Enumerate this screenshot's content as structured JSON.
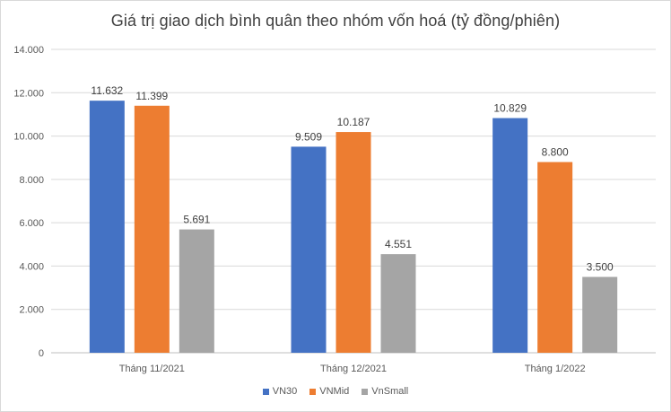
{
  "chart_data": {
    "type": "bar",
    "title": "Giá trị giao dịch bình quân theo nhóm vốn hoá (tỷ đồng/phiên)",
    "xlabel": "",
    "ylabel": "",
    "categories": [
      "Tháng 11/2021",
      "Tháng 12/2021",
      "Tháng 1/2022"
    ],
    "series": [
      {
        "name": "VN30",
        "color": "#4472c4",
        "values": [
          11632,
          9509,
          10829
        ],
        "labels": [
          "11.632",
          "9.509",
          "10.829"
        ]
      },
      {
        "name": "VNMid",
        "color": "#ed7d31",
        "values": [
          11399,
          10187,
          8800
        ],
        "labels": [
          "11.399",
          "10.187",
          "8.800"
        ]
      },
      {
        "name": "VnSmall",
        "color": "#a5a5a5",
        "values": [
          5691,
          4551,
          3500
        ],
        "labels": [
          "5.691",
          "4.551",
          "3.500"
        ]
      }
    ],
    "ylim": [
      0,
      14000
    ],
    "yticks": [
      0,
      2000,
      4000,
      6000,
      8000,
      10000,
      12000,
      14000
    ],
    "ytick_labels": [
      "0",
      "2.000",
      "4.000",
      "6.000",
      "8.000",
      "10.000",
      "12.000",
      "14.000"
    ],
    "grid": true,
    "legend_position": "bottom"
  }
}
